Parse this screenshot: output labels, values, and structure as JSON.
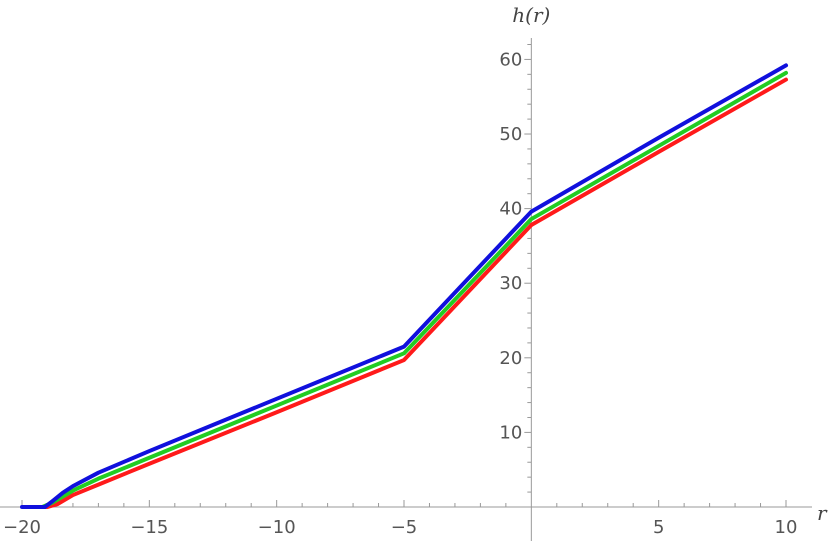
{
  "chart_data": {
    "type": "line",
    "xlabel": "r",
    "ylabel": "h(r)",
    "xlim": [
      -20,
      10
    ],
    "ylim": [
      0,
      62
    ],
    "x_ticks": [
      -20,
      -15,
      -10,
      -5,
      5,
      10
    ],
    "x_tick_labels": [
      "−20",
      "−15",
      "−10",
      "−5",
      "5",
      "10"
    ],
    "y_ticks": [
      10,
      20,
      30,
      40,
      50,
      60
    ],
    "y_tick_labels": [
      "10",
      "20",
      "30",
      "40",
      "50",
      "60"
    ],
    "grid": false,
    "legend": "none",
    "series": [
      {
        "color": "#ff1a1a",
        "x": [
          -19.4,
          -19.0,
          -18.6,
          -18.0,
          -17.0,
          -15.0,
          -10.0,
          -5.0,
          0.0,
          5.0,
          10.0
        ],
        "values": [
          0.0,
          0.0,
          0.4,
          1.6,
          3.0,
          5.8,
          12.7,
          19.7,
          37.8,
          47.6,
          57.3
        ]
      },
      {
        "color": "#22cc22",
        "x": [
          -19.6,
          -19.2,
          -18.8,
          -18.0,
          -17.0,
          -15.0,
          -10.0,
          -5.0,
          0.0,
          5.0,
          10.0
        ],
        "values": [
          0.0,
          0.0,
          0.6,
          2.2,
          3.8,
          6.6,
          13.6,
          20.6,
          38.6,
          48.4,
          58.2
        ]
      },
      {
        "color": "#1010dd",
        "x": [
          -20.0,
          -19.1,
          -18.8,
          -18.4,
          -18.0,
          -17.0,
          -15.0,
          -10.0,
          -5.0,
          0.0,
          5.0,
          10.0
        ],
        "values": [
          0.0,
          0.0,
          0.8,
          1.9,
          2.8,
          4.6,
          7.5,
          14.5,
          21.5,
          39.6,
          49.5,
          59.2
        ]
      }
    ]
  }
}
